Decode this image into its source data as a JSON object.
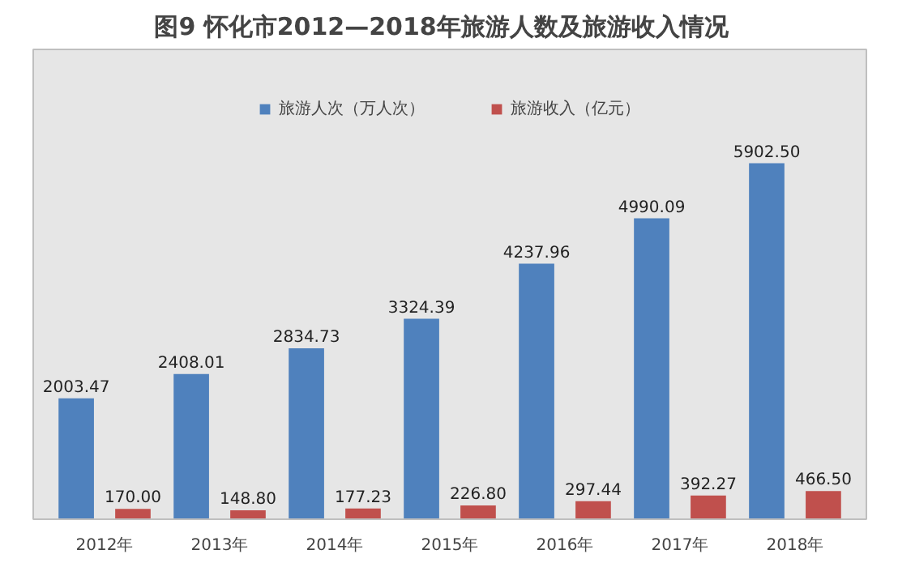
{
  "chart_data": {
    "type": "bar",
    "title": "图9   怀化市2012—2018年旅游人数及旅游收入情况",
    "categories": [
      "2012年",
      "2013年",
      "2014年",
      "2015年",
      "2016年",
      "2017年",
      "2018年"
    ],
    "series": [
      {
        "name": "旅游人次（万人次）",
        "color": "#4f81bd",
        "values": [
          2003.47,
          2408.01,
          2834.73,
          3324.39,
          4237.96,
          4990.09,
          5902.5
        ],
        "value_labels": [
          "2003.47",
          "2408.01",
          "2834.73",
          "3324.39",
          "4237.96",
          "4990.09",
          "5902.50"
        ]
      },
      {
        "name": "旅游收入（亿元）",
        "color": "#c0504d",
        "values": [
          170.0,
          148.8,
          177.23,
          226.8,
          297.44,
          392.27,
          466.5
        ],
        "value_labels": [
          "170.00",
          "148.80",
          "177.23",
          "226.80",
          "297.44",
          "392.27",
          "466.50"
        ]
      }
    ],
    "tick_labels": "x",
    "legend": "top"
  }
}
